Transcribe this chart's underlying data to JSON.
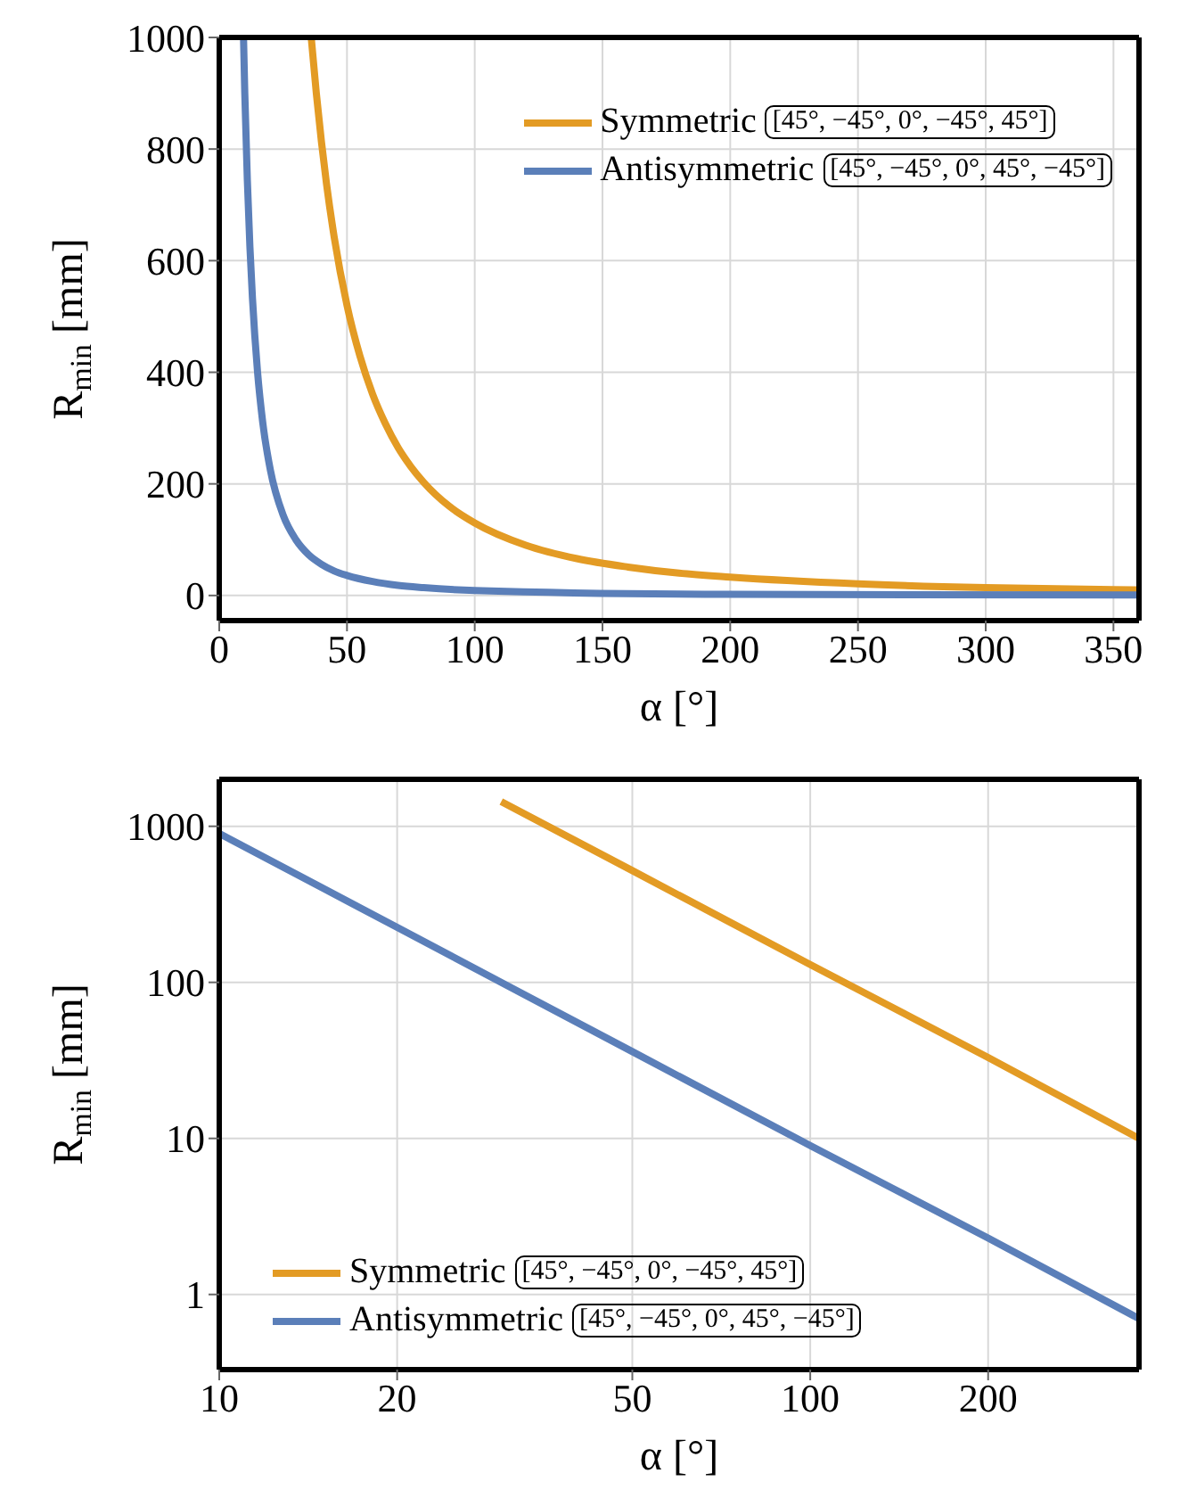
{
  "chart_data": [
    {
      "type": "line",
      "xlabel": "α [°]",
      "ylabel": "R$_{min}$ [mm]",
      "xlim": [
        0,
        360
      ],
      "ylim": [
        -45,
        1000
      ],
      "xticks": [
        0,
        50,
        100,
        150,
        200,
        250,
        300,
        350
      ],
      "yticks": [
        0,
        200,
        400,
        600,
        800,
        1000
      ],
      "grid": true,
      "legend": "top right",
      "annotations": [
        "[45°, −45°, 0°, −45°, 45°]",
        "[45°, −45°, 0°, 45°, −45°]"
      ],
      "series": [
        {
          "name": "Symmetric",
          "color": "#e39b24",
          "x": [
            36,
            38,
            40,
            42,
            45,
            50,
            55,
            60,
            65,
            70,
            75,
            80,
            90,
            100,
            120,
            140,
            160,
            180,
            200,
            250,
            300,
            360
          ],
          "values": [
            1000,
            900,
            813,
            737,
            642,
            520,
            430,
            361,
            308,
            265,
            231,
            203,
            160,
            130,
            90,
            66,
            51,
            40,
            33,
            21,
            14,
            10
          ]
        },
        {
          "name": "Antisymmetric",
          "color": "#5b7fb9",
          "x": [
            9.5,
            10,
            11,
            12,
            13,
            15,
            17,
            20,
            25,
            30,
            35,
            40,
            45,
            50,
            60,
            70,
            80,
            100,
            200,
            360
          ],
          "values": [
            1000,
            900,
            744,
            625,
            533,
            400,
            311,
            225,
            144,
            100,
            73,
            56,
            44,
            36,
            25,
            18,
            14,
            9,
            2,
            1
          ]
        }
      ]
    },
    {
      "type": "line",
      "xlabel": "α [°]",
      "ylabel": "R$_{min}$ [mm]",
      "log": "xy",
      "xlim": [
        10,
        360
      ],
      "ylim": [
        0.33,
        2000
      ],
      "xticks": [
        10,
        20,
        50,
        100,
        200
      ],
      "yticks": [
        1,
        10,
        100,
        1000
      ],
      "grid": true,
      "legend": "bottom left",
      "annotations": [
        "[45°, −45°, 0°, −45°, 45°]",
        "[45°, −45°, 0°, 45°, −45°]"
      ],
      "series": [
        {
          "name": "Symmetric",
          "color": "#e39b24",
          "x": [
            30,
            50,
            100,
            200,
            360
          ],
          "values": [
            1440,
            520,
            130,
            33,
            10
          ]
        },
        {
          "name": "Antisymmetric",
          "color": "#5b7fb9",
          "x": [
            10,
            20,
            50,
            100,
            200,
            360
          ],
          "values": [
            900,
            225,
            36,
            9,
            2.3,
            0.7
          ]
        }
      ]
    }
  ]
}
